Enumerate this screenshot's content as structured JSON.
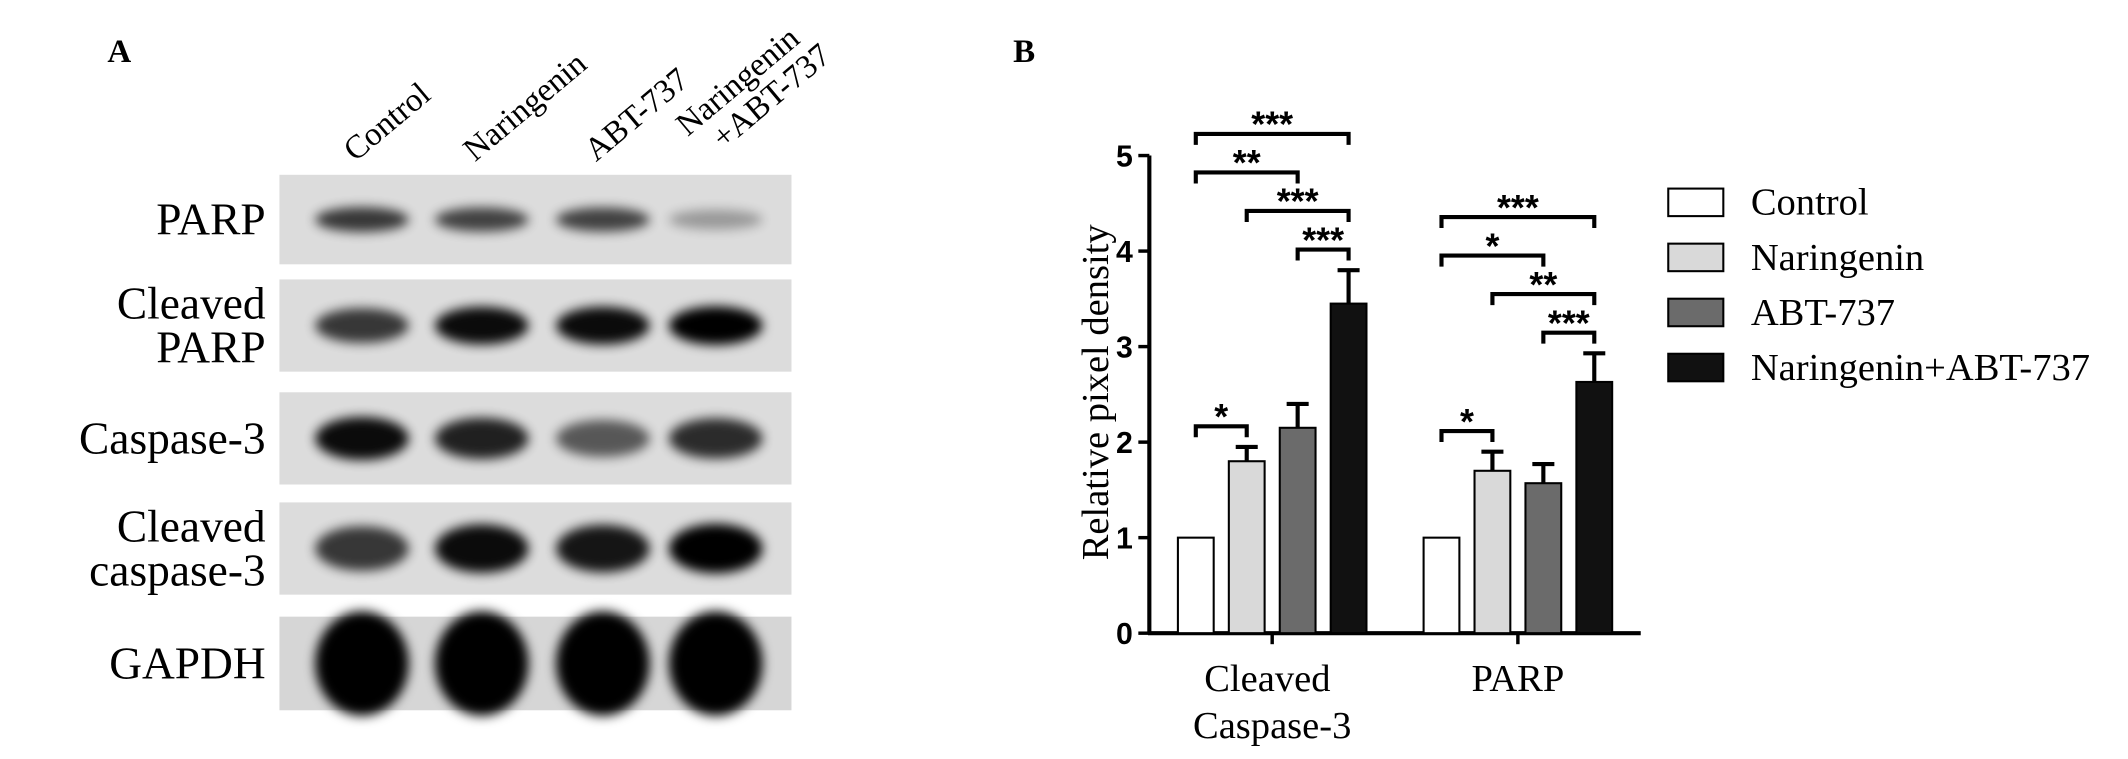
{
  "panel_a": {
    "label": "A",
    "lanes": [
      [
        "Control"
      ],
      [
        "Naringenin"
      ],
      [
        "ABT-737"
      ],
      [
        "Naringenin",
        "+ABT-737"
      ]
    ],
    "rows": [
      [
        "PARP"
      ],
      [
        "Cleaved",
        "PARP"
      ],
      [
        "Caspase-3"
      ],
      [
        "Cleaved",
        "caspase-3"
      ],
      [
        "GAPDH"
      ]
    ]
  },
  "panel_b": {
    "label": "B"
  },
  "chart_data": {
    "type": "bar",
    "y_label": "Relative pixel density",
    "categories": [
      "Cleaved Caspase-3",
      "PARP"
    ],
    "series": [
      {
        "name": "Control",
        "color": "#ffffff",
        "values": [
          1,
          1
        ],
        "errors": [
          0,
          0
        ]
      },
      {
        "name": "Naringenin",
        "color": "#d9d9d9",
        "values": [
          1.8,
          1.7
        ],
        "errors": [
          0.15,
          0.2
        ]
      },
      {
        "name": "ABT-737",
        "color": "#6b6b6b",
        "values": [
          2.15,
          1.57
        ],
        "errors": [
          0.25,
          0.2
        ]
      },
      {
        "name": "Naringenin+ABT-737",
        "color": "#111111",
        "values": [
          3.45,
          2.63
        ],
        "errors": [
          0.35,
          0.3
        ]
      }
    ],
    "ylim": [
      0,
      5
    ],
    "yticks": [
      0,
      1,
      2,
      3,
      4,
      5
    ],
    "annotations": [
      {
        "label": "***",
        "category": 0,
        "from": 0,
        "to": 3
      },
      {
        "label": "***",
        "category": 0,
        "from": 1,
        "to": 3
      },
      {
        "label": "***",
        "category": 0,
        "from": 2,
        "to": 3
      },
      {
        "label": "**",
        "category": 0,
        "from": 0,
        "to": 2
      },
      {
        "label": "*",
        "category": 0,
        "from": 0,
        "to": 1
      },
      {
        "label": "***",
        "category": 1,
        "from": 0,
        "to": 3
      },
      {
        "label": "**",
        "category": 1,
        "from": 1,
        "to": 3
      },
      {
        "label": "***",
        "category": 1,
        "from": 2,
        "to": 3
      },
      {
        "label": "*",
        "category": 1,
        "from": 0,
        "to": 2
      },
      {
        "label": "*",
        "category": 1,
        "from": 0,
        "to": 1
      }
    ]
  }
}
